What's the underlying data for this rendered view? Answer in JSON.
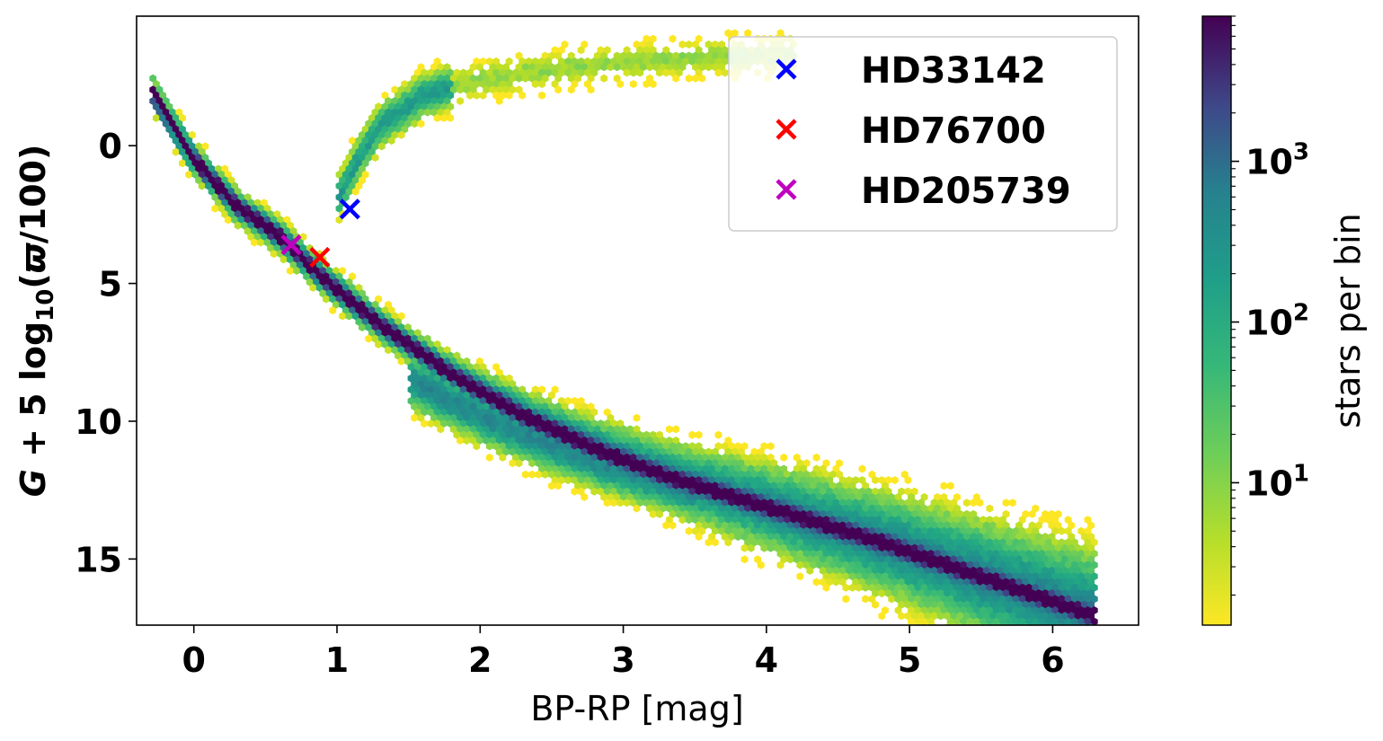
{
  "chart_data": {
    "type": "heatmap",
    "subtype": "hexbin color-magnitude diagram",
    "xlabel": "BP-RP [mag]",
    "ylabel": "G + 5 log10(ϖ/100)",
    "ylabel_parts": {
      "var": "G",
      "mid": " + 5 log",
      "sub": "10",
      "open": "(",
      "sym": "ϖ",
      "close": "/100)"
    },
    "xlim": [
      -0.4,
      6.6
    ],
    "ylim": [
      17.4,
      -4.7
    ],
    "y_inverted": true,
    "x_ticks": [
      "0",
      "1",
      "2",
      "3",
      "4",
      "5",
      "6"
    ],
    "y_ticks": [
      "0",
      "5",
      "10",
      "15"
    ],
    "grid": false,
    "colormap": "viridis_r",
    "colorbar": {
      "label": "stars per bin",
      "scale": "log",
      "range": [
        1.3,
        8000
      ],
      "ticks": [
        {
          "value": 10,
          "base": "10",
          "exp": "1"
        },
        {
          "value": 100,
          "base": "10",
          "exp": "2"
        },
        {
          "value": 1000,
          "base": "10",
          "exp": "3"
        }
      ]
    },
    "density_ridges": [
      {
        "name": "main_sequence",
        "points": [
          [
            -0.3,
            -2.0
          ],
          [
            0.0,
            0.5
          ],
          [
            0.3,
            2.2
          ],
          [
            0.6,
            3.3
          ],
          [
            0.9,
            4.8
          ],
          [
            1.3,
            6.5
          ],
          [
            1.8,
            8.3
          ],
          [
            2.3,
            9.8
          ],
          [
            2.8,
            11.0
          ],
          [
            3.3,
            12.0
          ],
          [
            3.8,
            12.8
          ],
          [
            4.3,
            13.6
          ],
          [
            4.8,
            14.4
          ],
          [
            5.3,
            15.3
          ],
          [
            5.8,
            16.2
          ],
          [
            6.3,
            17.1
          ]
        ]
      },
      {
        "name": "white_dwarf_like_lower_band",
        "points": [
          [
            1.5,
            8.5
          ],
          [
            2.0,
            9.8
          ],
          [
            2.5,
            10.9
          ],
          [
            3.0,
            11.8
          ],
          [
            3.5,
            12.6
          ]
        ]
      },
      {
        "name": "red_giant_branch",
        "points": [
          [
            1.0,
            2.0
          ],
          [
            1.15,
            0.5
          ],
          [
            1.3,
            -0.7
          ],
          [
            1.6,
            -1.8
          ],
          [
            2.0,
            -2.4
          ],
          [
            2.6,
            -2.8
          ],
          [
            3.2,
            -3.1
          ],
          [
            4.2,
            -3.3
          ]
        ]
      }
    ],
    "highlighted_stars": [
      {
        "name": "HD33142",
        "bp_rp": 1.09,
        "abs_mag": 2.3,
        "color": "#0000ff",
        "marker": "x"
      },
      {
        "name": "HD76700",
        "bp_rp": 0.88,
        "abs_mag": 4.05,
        "color": "#ff0000",
        "marker": "x"
      },
      {
        "name": "HD205739",
        "bp_rp": 0.68,
        "abs_mag": 3.6,
        "color": "#bf00bf",
        "marker": "x"
      }
    ],
    "legend": {
      "placement": "top-right"
    }
  }
}
